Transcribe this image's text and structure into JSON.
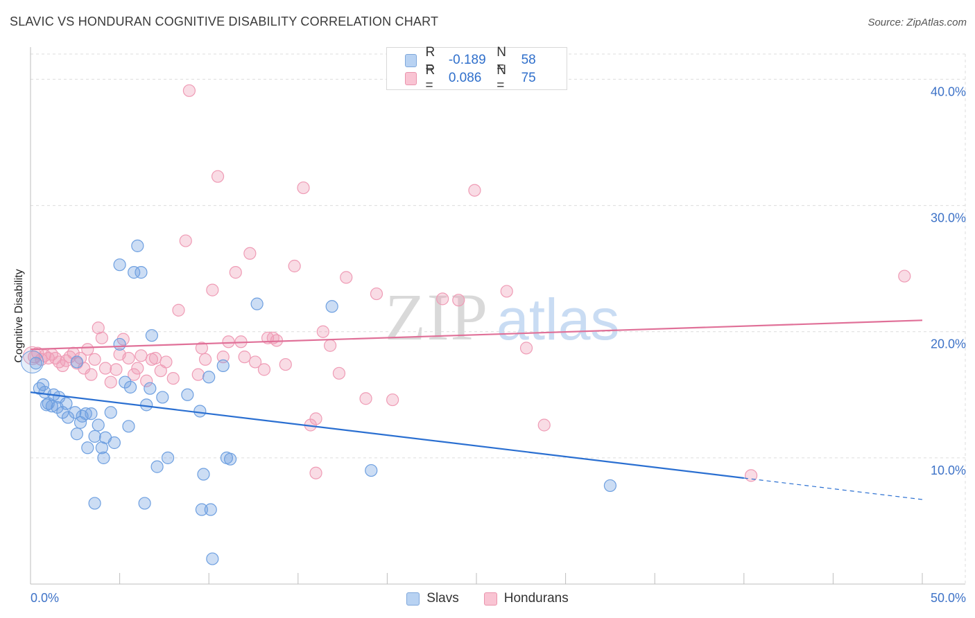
{
  "title": "SLAVIC VS HONDURAN COGNITIVE DISABILITY CORRELATION CHART",
  "source": "Source: ZipAtlas.com",
  "colors": {
    "slavs": "#6d9fe0",
    "hondurans": "#ef9bb5",
    "slavs_line": "#2a6fd1",
    "hondurans_line": "#e07098",
    "tick_text": "#3d72c7"
  },
  "legend": {
    "rows": [
      {
        "r_label": "R =",
        "r_value": "-0.189",
        "n_label": "N =",
        "n_value": "58"
      },
      {
        "r_label": "R =",
        "r_value": "0.086",
        "n_label": "N =",
        "n_value": "75"
      }
    ]
  },
  "bottom_legend": [
    "Slavs",
    "Hondurans"
  ],
  "chart_data": {
    "type": "scatter",
    "title": "SLAVIC VS HONDURAN COGNITIVE DISABILITY CORRELATION CHART",
    "xlabel": "",
    "ylabel": "Cognitive Disability",
    "xlim": [
      0,
      50
    ],
    "ylim": [
      0,
      42
    ],
    "x_tick_labels": [
      "0.0%",
      "50.0%"
    ],
    "y_ticks": [
      10,
      20,
      30,
      40
    ],
    "y_tick_labels": [
      "10.0%",
      "20.0%",
      "30.0%",
      "40.0%"
    ],
    "grid": true,
    "legend_position": "top-center",
    "watermark": "ZIPatlas",
    "series": [
      {
        "name": "Slavs",
        "r": -0.189,
        "n": 58,
        "trend": {
          "x0": 0,
          "y0": 15.2,
          "x1": 40,
          "y1": 8.4,
          "dashed_to_x": 50,
          "dashed_to_y": 6.7
        },
        "points": [
          [
            0.3,
            17.5
          ],
          [
            0.5,
            15.5
          ],
          [
            0.7,
            15.8
          ],
          [
            0.8,
            15.2
          ],
          [
            0.9,
            14.2
          ],
          [
            1.0,
            14.3
          ],
          [
            1.2,
            14.1
          ],
          [
            1.3,
            15.0
          ],
          [
            1.5,
            14.0
          ],
          [
            1.6,
            14.8
          ],
          [
            1.8,
            13.6
          ],
          [
            2.0,
            14.3
          ],
          [
            2.1,
            13.2
          ],
          [
            2.5,
            13.6
          ],
          [
            2.6,
            11.9
          ],
          [
            2.8,
            12.8
          ],
          [
            2.9,
            13.3
          ],
          [
            3.1,
            13.5
          ],
          [
            3.2,
            10.8
          ],
          [
            3.4,
            13.5
          ],
          [
            3.6,
            11.7
          ],
          [
            3.8,
            12.6
          ],
          [
            4.0,
            10.8
          ],
          [
            4.1,
            10.0
          ],
          [
            4.2,
            11.6
          ],
          [
            4.5,
            13.6
          ],
          [
            4.7,
            11.2
          ],
          [
            5.0,
            19.0
          ],
          [
            5.0,
            25.3
          ],
          [
            5.3,
            16.0
          ],
          [
            5.5,
            12.5
          ],
          [
            5.6,
            15.6
          ],
          [
            5.8,
            24.7
          ],
          [
            6.0,
            26.8
          ],
          [
            6.2,
            24.7
          ],
          [
            6.4,
            6.4
          ],
          [
            6.5,
            14.2
          ],
          [
            6.7,
            15.5
          ],
          [
            6.8,
            19.7
          ],
          [
            7.1,
            9.3
          ],
          [
            7.4,
            14.8
          ],
          [
            7.7,
            10.0
          ],
          [
            8.8,
            15.0
          ],
          [
            9.5,
            13.7
          ],
          [
            9.6,
            5.9
          ],
          [
            9.7,
            8.7
          ],
          [
            10.0,
            16.4
          ],
          [
            10.1,
            5.9
          ],
          [
            10.2,
            2.0
          ],
          [
            10.8,
            17.3
          ],
          [
            11.0,
            10.0
          ],
          [
            11.2,
            9.9
          ],
          [
            12.7,
            22.2
          ],
          [
            16.9,
            22.0
          ],
          [
            19.1,
            9.0
          ],
          [
            32.5,
            7.8
          ],
          [
            3.6,
            6.4
          ],
          [
            2.6,
            17.6
          ]
        ]
      },
      {
        "name": "Hondurans",
        "r": 0.086,
        "n": 75,
        "trend": {
          "x0": 0,
          "y0": 18.6,
          "x1": 50,
          "y1": 20.9
        },
        "points": [
          [
            0.2,
            18.0
          ],
          [
            0.4,
            18.3
          ],
          [
            0.6,
            17.8
          ],
          [
            0.8,
            18.1
          ],
          [
            1.0,
            17.9
          ],
          [
            1.2,
            18.2
          ],
          [
            1.4,
            17.9
          ],
          [
            1.6,
            17.6
          ],
          [
            1.8,
            17.3
          ],
          [
            2.0,
            17.7
          ],
          [
            2.2,
            18.0
          ],
          [
            2.4,
            18.3
          ],
          [
            2.6,
            17.5
          ],
          [
            2.8,
            17.9
          ],
          [
            3.0,
            17.1
          ],
          [
            3.2,
            18.6
          ],
          [
            3.4,
            16.6
          ],
          [
            3.6,
            17.8
          ],
          [
            3.8,
            20.3
          ],
          [
            4.0,
            19.5
          ],
          [
            4.2,
            17.1
          ],
          [
            4.5,
            16.0
          ],
          [
            4.8,
            17.0
          ],
          [
            5.0,
            18.2
          ],
          [
            5.2,
            19.4
          ],
          [
            5.5,
            17.9
          ],
          [
            5.8,
            16.6
          ],
          [
            6.0,
            17.1
          ],
          [
            6.2,
            18.1
          ],
          [
            6.5,
            16.1
          ],
          [
            6.8,
            17.8
          ],
          [
            7.0,
            17.9
          ],
          [
            7.3,
            16.9
          ],
          [
            7.6,
            17.6
          ],
          [
            8.0,
            16.3
          ],
          [
            8.3,
            21.7
          ],
          [
            8.7,
            27.2
          ],
          [
            8.9,
            39.1
          ],
          [
            9.4,
            16.6
          ],
          [
            9.6,
            18.7
          ],
          [
            9.8,
            17.8
          ],
          [
            10.2,
            23.3
          ],
          [
            10.5,
            32.3
          ],
          [
            10.8,
            18.0
          ],
          [
            11.1,
            19.2
          ],
          [
            11.5,
            24.7
          ],
          [
            11.8,
            19.2
          ],
          [
            12.0,
            18.0
          ],
          [
            12.3,
            26.2
          ],
          [
            12.6,
            17.6
          ],
          [
            13.1,
            17.0
          ],
          [
            13.3,
            19.5
          ],
          [
            13.6,
            19.5
          ],
          [
            13.8,
            19.3
          ],
          [
            14.3,
            17.4
          ],
          [
            14.8,
            25.2
          ],
          [
            15.3,
            31.4
          ],
          [
            15.7,
            12.6
          ],
          [
            16.0,
            13.1
          ],
          [
            16.0,
            8.8
          ],
          [
            16.4,
            20.0
          ],
          [
            16.8,
            18.9
          ],
          [
            17.3,
            16.7
          ],
          [
            17.7,
            24.3
          ],
          [
            18.8,
            14.7
          ],
          [
            19.4,
            23.0
          ],
          [
            20.3,
            14.6
          ],
          [
            23.1,
            22.6
          ],
          [
            24.0,
            22.5
          ],
          [
            24.9,
            31.2
          ],
          [
            26.7,
            23.2
          ],
          [
            27.8,
            18.7
          ],
          [
            28.8,
            12.6
          ],
          [
            40.4,
            8.6
          ],
          [
            49.0,
            24.4
          ]
        ]
      }
    ]
  }
}
